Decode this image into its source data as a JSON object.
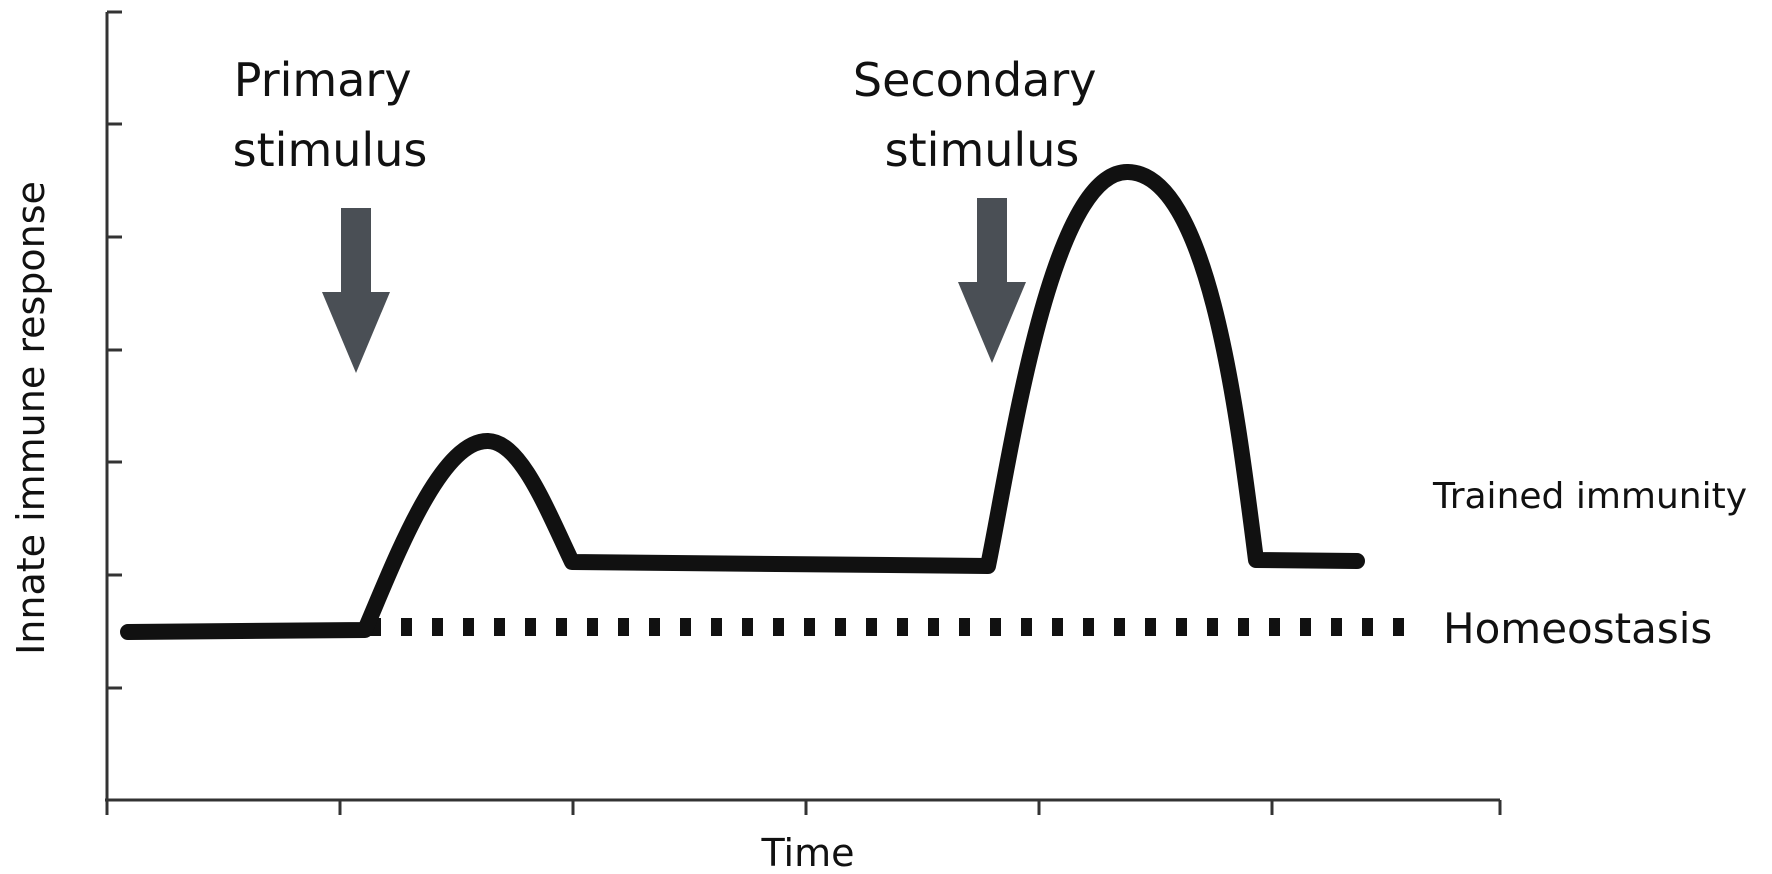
{
  "axes": {
    "ylabel": "Innate immune response",
    "xlabel": "Time"
  },
  "annotations": {
    "primary_stimulus": [
      "Primary",
      "stimulus"
    ],
    "secondary_stimulus": [
      "Secondary",
      "stimulus"
    ],
    "trained_immunity": "Trained immunity",
    "homeostasis": "Homeostasis"
  },
  "colors": {
    "curve": "#111111",
    "arrow": "#4a4f55",
    "axis": "#333333"
  }
}
